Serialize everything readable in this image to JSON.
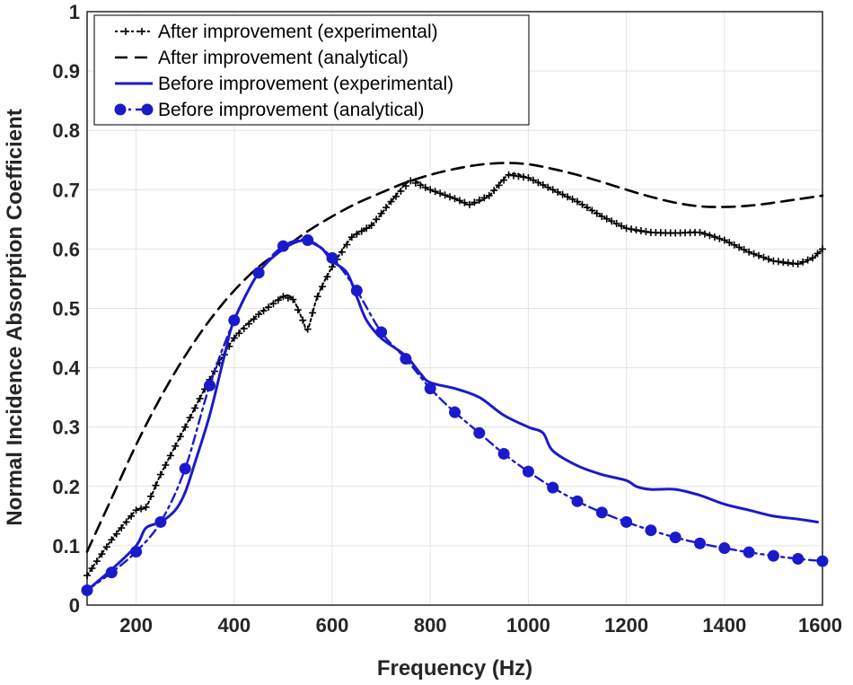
{
  "chart_data": {
    "type": "line",
    "title": "",
    "xlabel": "Frequency (Hz)",
    "ylabel": "Normal Incidence Absorption Coefficient",
    "xlim": [
      100,
      1600
    ],
    "ylim": [
      0,
      1
    ],
    "grid": true,
    "legend_position": "top-left",
    "x_ticks": [
      200,
      400,
      600,
      800,
      1000,
      1200,
      1400,
      1600
    ],
    "x_tick_labels": [
      "200",
      "400",
      "600",
      "800",
      "1000",
      "1200",
      "1400",
      "1600"
    ],
    "y_ticks": [
      0,
      0.1,
      0.2,
      0.3,
      0.4,
      0.5,
      0.6,
      0.7,
      0.8,
      0.9,
      1
    ],
    "y_tick_labels": [
      "0",
      "0.1",
      "0.2",
      "0.3",
      "0.4",
      "0.5",
      "0.6",
      "0.7",
      "0.8",
      "0.9",
      "1"
    ],
    "series": [
      {
        "name": "After improvement (experimental)",
        "color": "#000000",
        "style": "dotted-plus",
        "x": [
          100,
          150,
          200,
          220,
          250,
          300,
          350,
          400,
          450,
          500,
          520,
          540,
          550,
          570,
          600,
          640,
          680,
          720,
          760,
          800,
          850,
          880,
          920,
          960,
          1000,
          1050,
          1100,
          1150,
          1200,
          1250,
          1300,
          1350,
          1400,
          1450,
          1500,
          1550,
          1580,
          1600
        ],
        "y": [
          0.05,
          0.11,
          0.16,
          0.165,
          0.22,
          0.3,
          0.38,
          0.45,
          0.49,
          0.52,
          0.515,
          0.48,
          0.465,
          0.52,
          0.57,
          0.62,
          0.64,
          0.68,
          0.715,
          0.7,
          0.685,
          0.675,
          0.69,
          0.725,
          0.72,
          0.7,
          0.68,
          0.655,
          0.635,
          0.628,
          0.627,
          0.628,
          0.615,
          0.595,
          0.58,
          0.575,
          0.585,
          0.6
        ]
      },
      {
        "name": "After improvement (analytical)",
        "color": "#000000",
        "style": "dashed",
        "x": [
          100,
          150,
          200,
          250,
          300,
          350,
          400,
          450,
          500,
          550,
          600,
          650,
          700,
          750,
          800,
          850,
          900,
          950,
          1000,
          1050,
          1100,
          1150,
          1200,
          1250,
          1300,
          1350,
          1400,
          1450,
          1500,
          1550,
          1600
        ],
        "y": [
          0.09,
          0.18,
          0.27,
          0.35,
          0.42,
          0.48,
          0.53,
          0.57,
          0.6,
          0.63,
          0.655,
          0.677,
          0.695,
          0.712,
          0.725,
          0.735,
          0.742,
          0.745,
          0.743,
          0.735,
          0.725,
          0.713,
          0.7,
          0.688,
          0.678,
          0.672,
          0.671,
          0.673,
          0.678,
          0.684,
          0.69
        ]
      },
      {
        "name": "Before improvement (experimental)",
        "color": "#1a1acc",
        "style": "solid",
        "x": [
          100,
          150,
          200,
          220,
          250,
          280,
          300,
          320,
          350,
          380,
          400,
          450,
          500,
          540,
          560,
          580,
          600,
          630,
          650,
          670,
          700,
          750,
          780,
          800,
          850,
          900,
          950,
          1000,
          1030,
          1050,
          1100,
          1150,
          1200,
          1220,
          1250,
          1300,
          1350,
          1400,
          1450,
          1500,
          1550,
          1590
        ],
        "y": [
          0.025,
          0.06,
          0.1,
          0.13,
          0.14,
          0.16,
          0.19,
          0.24,
          0.32,
          0.42,
          0.48,
          0.56,
          0.6,
          0.615,
          0.61,
          0.6,
          0.58,
          0.56,
          0.52,
          0.48,
          0.45,
          0.42,
          0.39,
          0.375,
          0.365,
          0.35,
          0.32,
          0.3,
          0.29,
          0.26,
          0.235,
          0.22,
          0.21,
          0.2,
          0.195,
          0.195,
          0.185,
          0.17,
          0.16,
          0.15,
          0.145,
          0.14
        ]
      },
      {
        "name": "Before improvement (analytical)",
        "color": "#1a1acc",
        "style": "dashdot-circle",
        "x": [
          100,
          150,
          200,
          250,
          300,
          350,
          400,
          450,
          500,
          550,
          600,
          650,
          700,
          750,
          800,
          850,
          900,
          950,
          1000,
          1050,
          1100,
          1150,
          1200,
          1250,
          1300,
          1350,
          1400,
          1450,
          1500,
          1550,
          1600
        ],
        "y": [
          0.025,
          0.055,
          0.09,
          0.14,
          0.23,
          0.37,
          0.48,
          0.56,
          0.605,
          0.615,
          0.585,
          0.53,
          0.46,
          0.415,
          0.365,
          0.325,
          0.29,
          0.255,
          0.225,
          0.198,
          0.175,
          0.156,
          0.14,
          0.126,
          0.114,
          0.104,
          0.096,
          0.089,
          0.083,
          0.078,
          0.074
        ]
      }
    ]
  }
}
